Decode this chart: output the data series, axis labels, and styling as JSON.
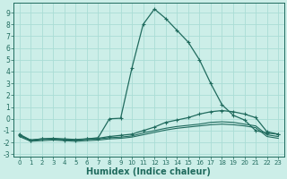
{
  "xlabel": "Humidex (Indice chaleur)",
  "xlim": [
    -0.5,
    23.5
  ],
  "ylim": [
    -3.2,
    9.8
  ],
  "yticks": [
    -3,
    -2,
    -1,
    0,
    1,
    2,
    3,
    4,
    5,
    6,
    7,
    8,
    9
  ],
  "xticks": [
    0,
    1,
    2,
    3,
    4,
    5,
    6,
    7,
    8,
    9,
    10,
    11,
    12,
    13,
    14,
    15,
    16,
    17,
    18,
    19,
    20,
    21,
    22,
    23
  ],
  "bg_color": "#cceee8",
  "grid_color": "#aaddD5",
  "line_color": "#206b5e",
  "series_peak": {
    "x": [
      0,
      1,
      2,
      3,
      4,
      5,
      6,
      7,
      8,
      9,
      10,
      11,
      12,
      13,
      14,
      15,
      16,
      17,
      18,
      19,
      20,
      21,
      22,
      23
    ],
    "y": [
      -1.3,
      -1.8,
      -1.7,
      -1.7,
      -1.8,
      -1.8,
      -1.7,
      -1.6,
      0.0,
      0.05,
      4.3,
      8.0,
      9.3,
      8.5,
      7.5,
      6.5,
      5.0,
      3.0,
      1.2,
      0.3,
      -0.1,
      -1.0,
      -1.2,
      -1.3
    ],
    "markers": [
      0,
      1,
      2,
      3,
      4,
      5,
      6,
      7,
      8,
      9,
      10,
      11,
      12,
      13,
      14,
      15,
      16,
      17,
      18,
      19,
      20,
      21,
      22,
      23
    ]
  },
  "series_mid": {
    "x": [
      0,
      1,
      2,
      3,
      4,
      5,
      6,
      7,
      8,
      9,
      10,
      11,
      12,
      13,
      14,
      15,
      16,
      17,
      18,
      19,
      20,
      21,
      22,
      23
    ],
    "y": [
      -1.4,
      -1.8,
      -1.7,
      -1.65,
      -1.7,
      -1.75,
      -1.7,
      -1.65,
      -1.5,
      -1.4,
      -1.3,
      -1.0,
      -0.7,
      -0.3,
      -0.1,
      0.1,
      0.4,
      0.6,
      0.7,
      0.6,
      0.4,
      0.1,
      -1.1,
      -1.3
    ],
    "markers": [
      0,
      1,
      2,
      3,
      4,
      5,
      6,
      7,
      8,
      9,
      10,
      11,
      12,
      13,
      14,
      15,
      16,
      17,
      18,
      19,
      20,
      21,
      22,
      23
    ]
  },
  "series_low1": {
    "x": [
      0,
      1,
      2,
      3,
      4,
      5,
      6,
      7,
      8,
      9,
      10,
      11,
      12,
      13,
      14,
      15,
      16,
      17,
      18,
      19,
      20,
      21,
      22,
      23
    ],
    "y": [
      -1.4,
      -1.85,
      -1.75,
      -1.7,
      -1.75,
      -1.8,
      -1.75,
      -1.7,
      -1.6,
      -1.55,
      -1.45,
      -1.2,
      -1.0,
      -0.8,
      -0.65,
      -0.55,
      -0.45,
      -0.3,
      -0.25,
      -0.3,
      -0.45,
      -0.6,
      -1.35,
      -1.5
    ]
  },
  "series_low2": {
    "x": [
      0,
      1,
      2,
      3,
      4,
      5,
      6,
      7,
      8,
      9,
      10,
      11,
      12,
      13,
      14,
      15,
      16,
      17,
      18,
      19,
      20,
      21,
      22,
      23
    ],
    "y": [
      -1.5,
      -1.9,
      -1.85,
      -1.8,
      -1.85,
      -1.9,
      -1.85,
      -1.8,
      -1.7,
      -1.65,
      -1.55,
      -1.35,
      -1.15,
      -0.95,
      -0.8,
      -0.7,
      -0.6,
      -0.5,
      -0.45,
      -0.5,
      -0.6,
      -0.75,
      -1.5,
      -1.65
    ]
  }
}
